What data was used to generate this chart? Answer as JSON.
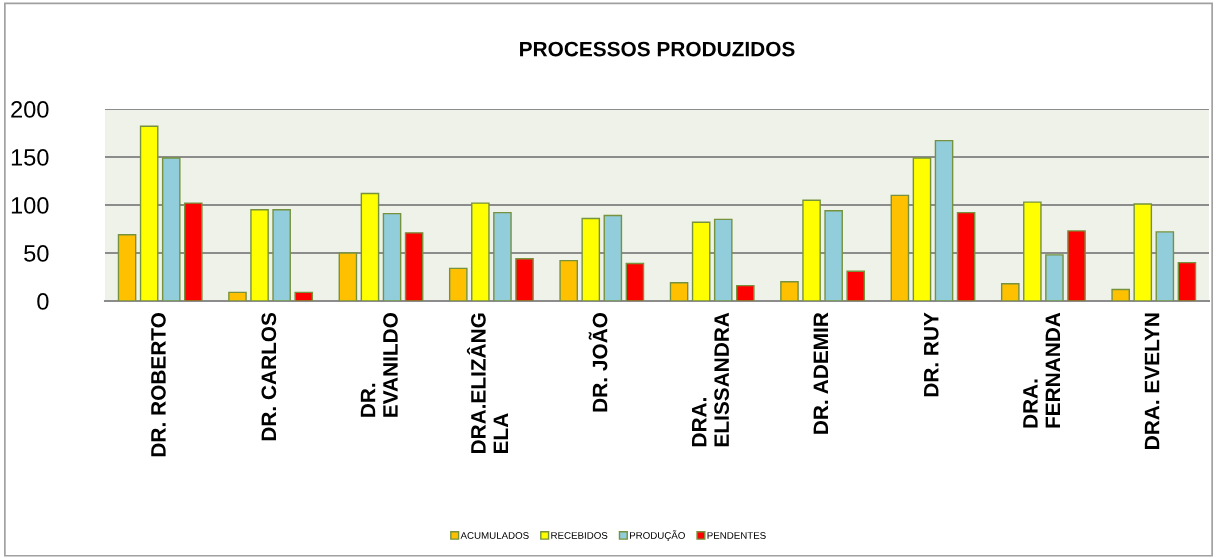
{
  "chart_data": {
    "type": "bar",
    "title": "PROCESSOS PRODUZIDOS",
    "categories": [
      "DR. ROBERTO",
      "DR. CARLOS",
      "DR.\nEVANILDO",
      "DRA.ELIZÂNG\nELA",
      "DR. JOÃO",
      "DRA.\nELISSANDRA",
      "DR. ADEMIR",
      "DR. RUY",
      "DRA.\nFERNANDA",
      "DRA. EVELYN"
    ],
    "series": [
      {
        "name": "ACUMULADOS",
        "color": "#ffc000",
        "values": [
          69,
          9,
          50,
          34,
          42,
          19,
          20,
          110,
          18,
          12
        ]
      },
      {
        "name": "RECEBIDOS",
        "color": "#ffff00",
        "values": [
          182,
          95,
          112,
          102,
          86,
          82,
          105,
          149,
          103,
          101
        ]
      },
      {
        "name": "PRODUÇÃO",
        "color": "#92cddc",
        "values": [
          149,
          95,
          91,
          92,
          89,
          85,
          94,
          167,
          48,
          72
        ]
      },
      {
        "name": "PENDENTES",
        "color": "#ff0000",
        "values": [
          102,
          9,
          71,
          44,
          39,
          16,
          31,
          92,
          73,
          40
        ]
      }
    ],
    "ylim": [
      0,
      200
    ],
    "yticks": [
      0,
      50,
      100,
      150,
      200
    ],
    "grid": "y",
    "legend": "bottom"
  }
}
